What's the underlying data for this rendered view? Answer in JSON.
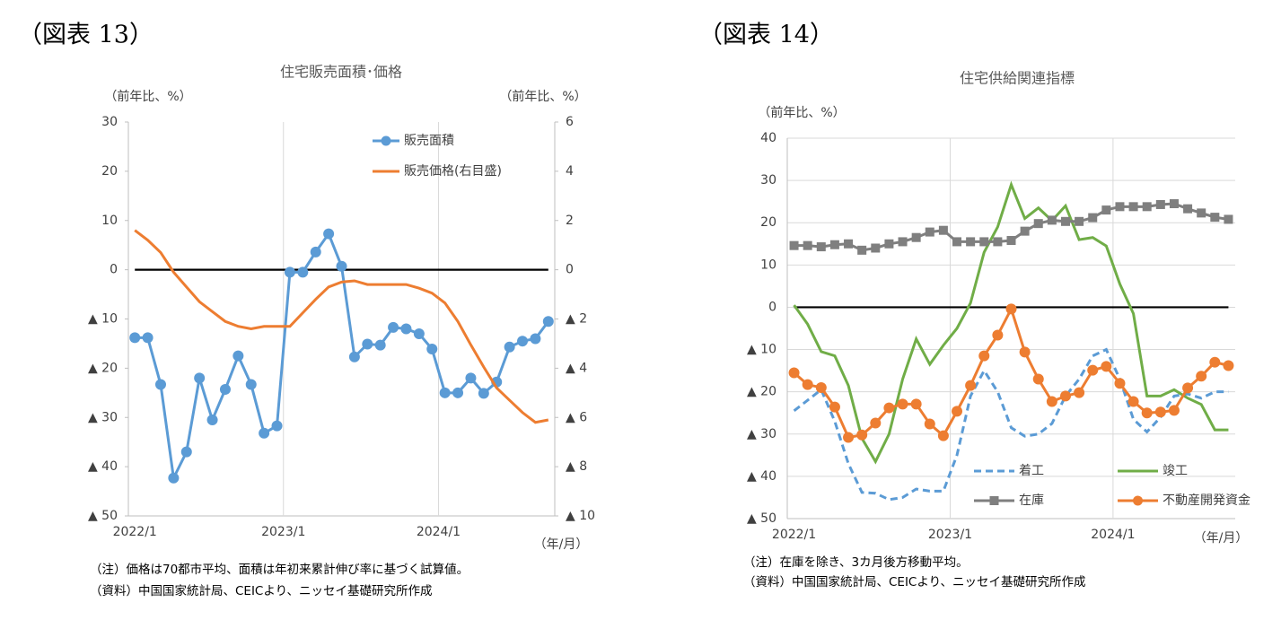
{
  "chart_data": [
    {
      "type": "line",
      "figure_label": "（図表 13）",
      "title": "住宅販売面積･価格",
      "ylabel": "（前年比、%）",
      "y2label": "（前年比、%）",
      "xlabel": "（年/月）",
      "notes": [
        "（注）価格は70都市平均、面積は年初来累計伸び率に基づく試算値。",
        "（資料）中国国家統計局、CEICより、ニッセイ基礎研究所作成"
      ],
      "categories": [
        "2022/1",
        null,
        null,
        null,
        null,
        null,
        null,
        null,
        null,
        null,
        null,
        null,
        "2023/1",
        null,
        null,
        null,
        null,
        null,
        null,
        null,
        null,
        null,
        null,
        null,
        "2024/1",
        null,
        null,
        null,
        null,
        null,
        null,
        null,
        null
      ],
      "ylim": [
        -50,
        30
      ],
      "yticks": [
        30,
        20,
        10,
        0,
        {
          "value": -10,
          "label": "▲ 10"
        },
        {
          "value": -20,
          "label": "▲ 20"
        },
        {
          "value": -30,
          "label": "▲ 30"
        },
        {
          "value": -40,
          "label": "▲ 40"
        },
        {
          "value": -50,
          "label": "▲ 50"
        }
      ],
      "y2lim": [
        -10,
        6
      ],
      "y2ticks": [
        6,
        4,
        2,
        0,
        {
          "value": -2,
          "label": "▲ 2"
        },
        {
          "value": -4,
          "label": "▲ 4"
        },
        {
          "value": -6,
          "label": "▲ 6"
        },
        {
          "value": -8,
          "label": "▲ 8"
        },
        {
          "value": -10,
          "label": "▲ 10"
        }
      ],
      "grid": false,
      "zero_line": true,
      "legend": "upper right",
      "series": [
        {
          "name": "販売面積",
          "color": "#5b9bd5",
          "marker": "circle",
          "values": [
            -13.8,
            -13.8,
            -23.3,
            -42.3,
            -37,
            -22,
            -30.5,
            -24.3,
            -17.5,
            -23.3,
            -33.2,
            -31.7,
            -0.5,
            -0.5,
            3.6,
            7.3,
            0.7,
            -17.7,
            -15.1,
            -15.3,
            -11.7,
            -12,
            -13,
            -16.1,
            -25,
            -25,
            -22,
            -25.1,
            -22.8,
            -15.7,
            -14.5,
            -14,
            -10.5
          ]
        },
        {
          "name": "販売価格(右目盛)",
          "color": "#ed7d31",
          "axis": "y2",
          "values": [
            1.6,
            1.2,
            0.7,
            -0.1,
            -0.7,
            -1.3,
            -1.7,
            -2.1,
            -2.3,
            -2.4,
            -2.3,
            -2.3,
            -2.3,
            -1.75,
            -1.2,
            -0.7,
            -0.5,
            -0.45,
            -0.6,
            -0.6,
            -0.6,
            -0.6,
            -0.75,
            -0.95,
            -1.35,
            -2.1,
            -3.05,
            -3.95,
            -4.8,
            -5.3,
            -5.8,
            -6.2,
            -6.1
          ]
        }
      ]
    },
    {
      "type": "line",
      "figure_label": "（図表 14）",
      "title": "住宅供給関連指標",
      "ylabel": "（前年比、%）",
      "xlabel": "（年/月）",
      "notes": [
        "（注）在庫を除き、3カ月後方移動平均。",
        "（資料）中国国家統計局、CEICより、ニッセイ基礎研究所作成"
      ],
      "categories": [
        "2022/1",
        null,
        null,
        null,
        null,
        null,
        null,
        null,
        null,
        null,
        null,
        null,
        "2023/1",
        null,
        null,
        null,
        null,
        null,
        null,
        null,
        null,
        null,
        null,
        null,
        "2024/1",
        null,
        null,
        null,
        null,
        null,
        null,
        null,
        null
      ],
      "ylim": [
        -50,
        40
      ],
      "yticks": [
        40,
        30,
        20,
        10,
        0,
        {
          "value": -10,
          "label": "▲ 10"
        },
        {
          "value": -20,
          "label": "▲ 20"
        },
        {
          "value": -30,
          "label": "▲ 30"
        },
        {
          "value": -40,
          "label": "▲ 40"
        },
        {
          "value": -50,
          "label": "▲ 50"
        }
      ],
      "grid": true,
      "zero_line": true,
      "legend": "lower right",
      "series": [
        {
          "name": "着工",
          "color": "#5b9bd5",
          "dash": true,
          "values": [
            -24.5,
            -22,
            -19.5,
            -27,
            -37,
            -43.8,
            -44,
            -45.5,
            -45,
            -43,
            -43.5,
            -43.5,
            -35,
            -21,
            -15,
            -20,
            -28.5,
            -30.5,
            -30,
            -27.5,
            -21,
            -17,
            -11.5,
            -10,
            -17,
            -26.5,
            -29.5,
            -26,
            -21,
            -20.5,
            -21.5,
            -20,
            -20
          ]
        },
        {
          "name": "竣工",
          "color": "#70ad47",
          "values": [
            0.5,
            -4,
            -10.5,
            -11.5,
            -18.5,
            -31,
            -36.5,
            -30,
            -17,
            -7.5,
            -13.5,
            -9,
            -5,
            1,
            13,
            19,
            29,
            21,
            23.5,
            20.5,
            24,
            16,
            16.5,
            14.5,
            5.5,
            -1.5,
            -21,
            -21,
            -19.5,
            -21.5,
            -23,
            -29,
            -29
          ]
        },
        {
          "name": "在庫",
          "color": "#7f7f7f",
          "marker": "square",
          "values": [
            14.6,
            14.6,
            14.3,
            14.8,
            15,
            13.5,
            14,
            15,
            15.5,
            16.5,
            17.8,
            18.2,
            15.5,
            15.5,
            15.5,
            15.5,
            15.8,
            18,
            19.8,
            20.6,
            20.3,
            20.3,
            21.2,
            23,
            23.8,
            23.8,
            23.8,
            24.3,
            24.5,
            23.3,
            22.3,
            21.3,
            20.8
          ]
        },
        {
          "name": "不動産開発資金",
          "color": "#ed7d31",
          "marker": "circle",
          "values": [
            -15.5,
            -18.3,
            -19,
            -23.6,
            -30.8,
            -30.2,
            -27.4,
            -23.8,
            -22.9,
            -22.9,
            -27.6,
            -30.4,
            -24.6,
            -18.5,
            -11.5,
            -6.6,
            -0.4,
            -10.6,
            -17,
            -22.3,
            -21,
            -20.2,
            -14.9,
            -14,
            -18,
            -22.3,
            -25,
            -24.8,
            -24.4,
            -19.1,
            -16.3,
            -13,
            -13.8
          ]
        }
      ]
    }
  ]
}
